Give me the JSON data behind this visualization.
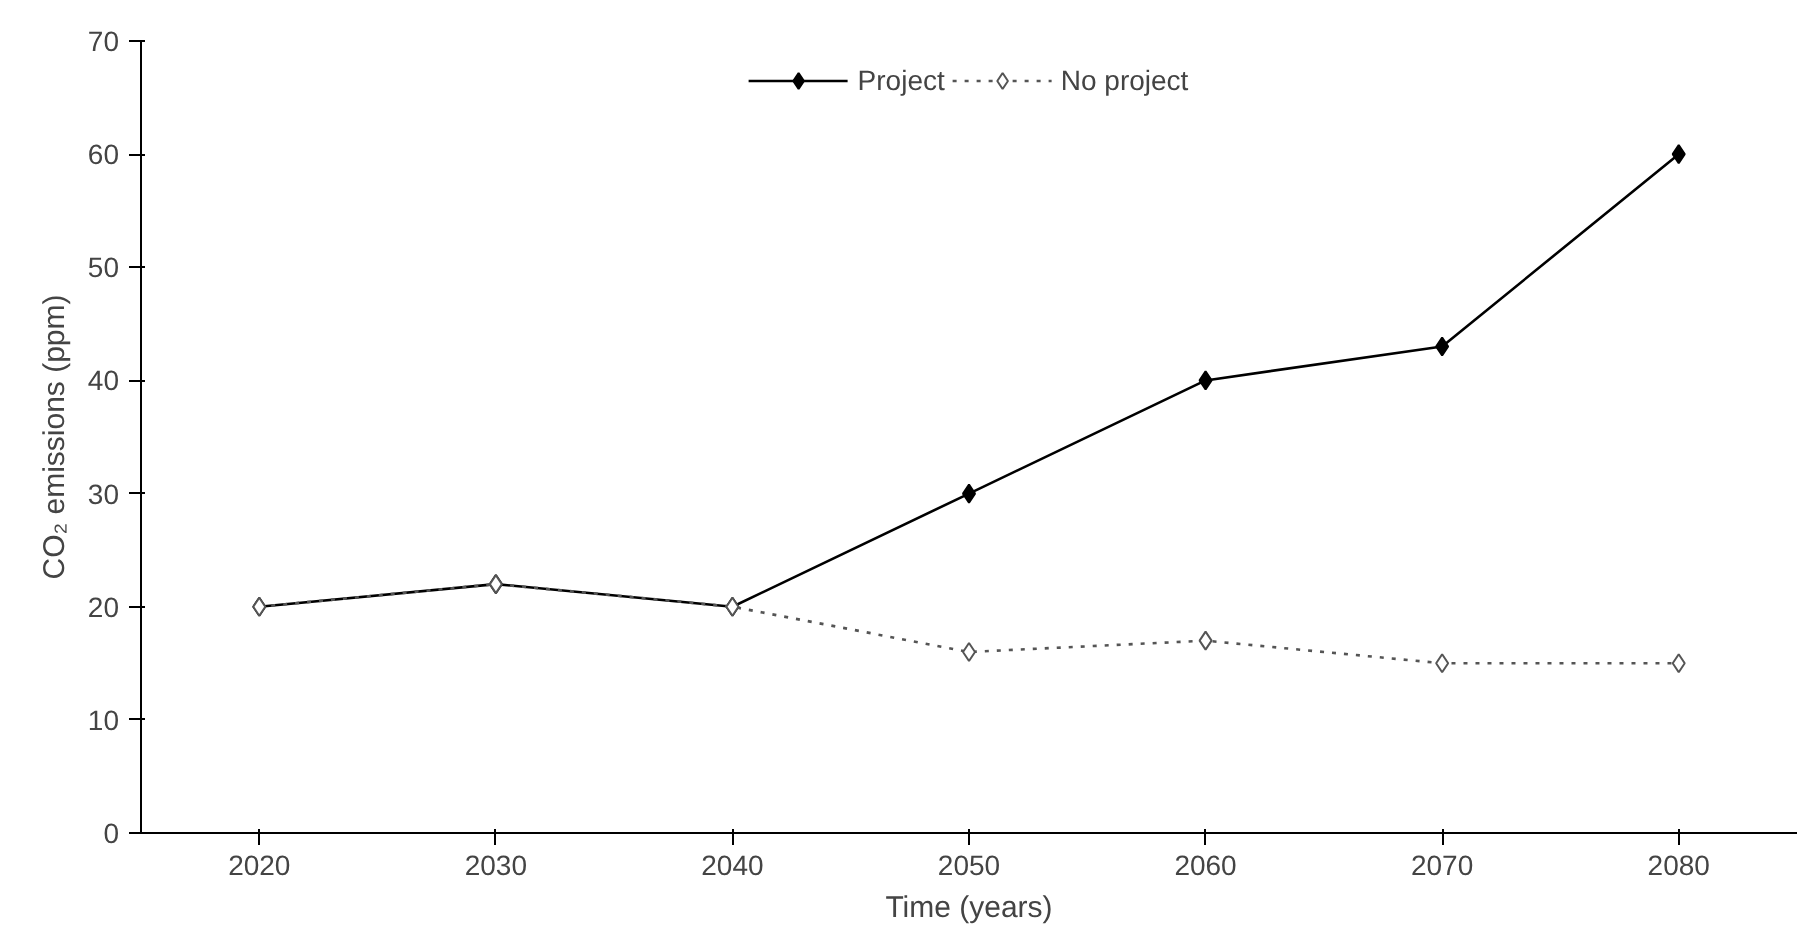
{
  "chart_data": {
    "type": "line",
    "xlabel": "Time (years)",
    "ylabel": "CO₂ emissions (ppm)",
    "categories": [
      "2020",
      "2030",
      "2040",
      "2050",
      "2060",
      "2070",
      "2080"
    ],
    "series": [
      {
        "name": "Project",
        "color": "#000000",
        "values": [
          20,
          22,
          20,
          30,
          40,
          43,
          60
        ],
        "line_style": "solid"
      },
      {
        "name": "No project",
        "color": "#555555",
        "values": [
          20,
          22,
          20,
          16,
          17,
          15,
          15
        ],
        "line_style": "dotted"
      }
    ],
    "ylim": [
      0,
      70
    ],
    "yticks": [
      0,
      10,
      20,
      30,
      40,
      50,
      60,
      70
    ],
    "grid": false,
    "legend": "top",
    "marker": "diamond"
  }
}
